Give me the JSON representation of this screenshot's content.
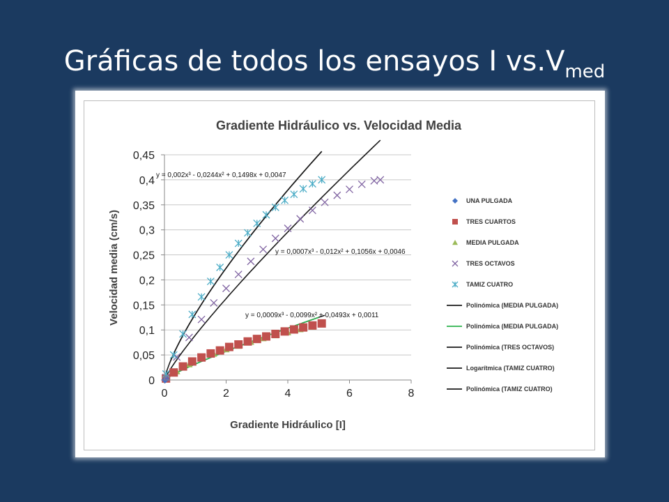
{
  "slide": {
    "title_main": "Gráficas de todos los ensayos I vs.V",
    "title_sub": "med"
  },
  "chart_data": {
    "type": "scatter",
    "title": "Gradiente Hidráulico vs. Velocidad Media",
    "xlabel": "Gradiente Hidráulico  [I]",
    "ylabel": "Velocidad media  (cm/s)",
    "xlim": [
      0,
      8
    ],
    "ylim": [
      0,
      0.45
    ],
    "x_ticks": [
      0,
      2,
      4,
      6,
      8
    ],
    "x_tick_labels": [
      "0",
      "2",
      "4",
      "6",
      "8"
    ],
    "y_ticks": [
      0,
      0.05,
      0.1,
      0.15,
      0.2,
      0.25,
      0.3,
      0.35,
      0.4,
      0.45
    ],
    "y_tick_labels": [
      "0",
      "0,05",
      "0,1",
      "0,15",
      "0,2",
      "0,25",
      "0,3",
      "0,35",
      "0,4",
      "0,45"
    ],
    "grid": "horizontal",
    "legend_position": "right",
    "series": [
      {
        "name": "UNA PULGADA",
        "marker": "diamond",
        "color": "#4472c4",
        "x": [
          0.02,
          0.05
        ],
        "y": [
          0.0,
          0.002
        ]
      },
      {
        "name": "TRES CUARTOS",
        "marker": "square",
        "color": "#c0504d",
        "x": [
          0.05,
          0.3,
          0.6,
          0.9,
          1.2,
          1.5,
          1.8,
          2.1,
          2.4,
          2.7,
          3.0,
          3.3,
          3.6,
          3.9,
          4.2,
          4.5,
          4.8,
          5.1
        ],
        "y": [
          0.003,
          0.015,
          0.027,
          0.037,
          0.045,
          0.053,
          0.059,
          0.066,
          0.071,
          0.077,
          0.082,
          0.087,
          0.092,
          0.097,
          0.101,
          0.105,
          0.109,
          0.113
        ]
      },
      {
        "name": "MEDIA PULGADA",
        "marker": "triangle",
        "color": "#9bbb59",
        "x": [
          0.05,
          0.4,
          0.8,
          1.2,
          1.6,
          2.0,
          2.4,
          2.8,
          3.2,
          3.6,
          4.0,
          4.4,
          4.8
        ],
        "y": [
          0.002,
          0.017,
          0.031,
          0.043,
          0.052,
          0.061,
          0.068,
          0.076,
          0.083,
          0.089,
          0.095,
          0.101,
          0.106
        ]
      },
      {
        "name": "TRES OCTAVOS",
        "marker": "x",
        "color": "#8064a2",
        "x": [
          0.05,
          0.4,
          0.8,
          1.2,
          1.6,
          2.0,
          2.4,
          2.8,
          3.2,
          3.6,
          4.0,
          4.4,
          4.8,
          5.2,
          5.6,
          6.0,
          6.4,
          6.8,
          7.0
        ],
        "y": [
          0.005,
          0.046,
          0.085,
          0.121,
          0.154,
          0.183,
          0.211,
          0.237,
          0.261,
          0.283,
          0.303,
          0.322,
          0.339,
          0.355,
          0.369,
          0.381,
          0.391,
          0.398,
          0.4
        ]
      },
      {
        "name": "TAMIZ CUATRO",
        "marker": "asterisk",
        "color": "#4bacc6",
        "x": [
          0.05,
          0.3,
          0.6,
          0.9,
          1.2,
          1.5,
          1.8,
          2.1,
          2.4,
          2.7,
          3.0,
          3.3,
          3.6,
          3.9,
          4.2,
          4.5,
          4.8,
          5.1
        ],
        "y": [
          0.012,
          0.05,
          0.092,
          0.131,
          0.166,
          0.197,
          0.225,
          0.25,
          0.273,
          0.294,
          0.313,
          0.33,
          0.345,
          0.359,
          0.371,
          0.382,
          0.392,
          0.4
        ]
      }
    ],
    "trendlines": [
      {
        "name": "Polinómica (MEDIA PULGADA)",
        "color": "#1a1a1a",
        "x_range": [
          0,
          5.2
        ]
      },
      {
        "name": "Polinómica (MEDIA PULGADA)",
        "color": "#2bb24c",
        "x_range": [
          0,
          5.0
        ]
      },
      {
        "name": "Polinómica (TRES OCTAVOS)",
        "color": "#1a1a1a",
        "x_range": [
          0,
          7.0
        ]
      },
      {
        "name": "Logarítmica (TAMIZ CUATRO)",
        "color": "#1a1a1a",
        "x_range": [
          0.2,
          5.1
        ]
      },
      {
        "name": "Polinómica (TAMIZ CUATRO)",
        "color": "#1a1a1a",
        "x_range": [
          0,
          5.1
        ]
      }
    ],
    "annotations": [
      "y = 0,002x³ - 0,0244x² + 0,1498x + 0,0047",
      "y = 0,0007x³ - 0,012x² + 0,1056x + 0,0046",
      "y = 0,0009x³ - 0,0099x² + 0,0493x + 0,0011"
    ]
  }
}
